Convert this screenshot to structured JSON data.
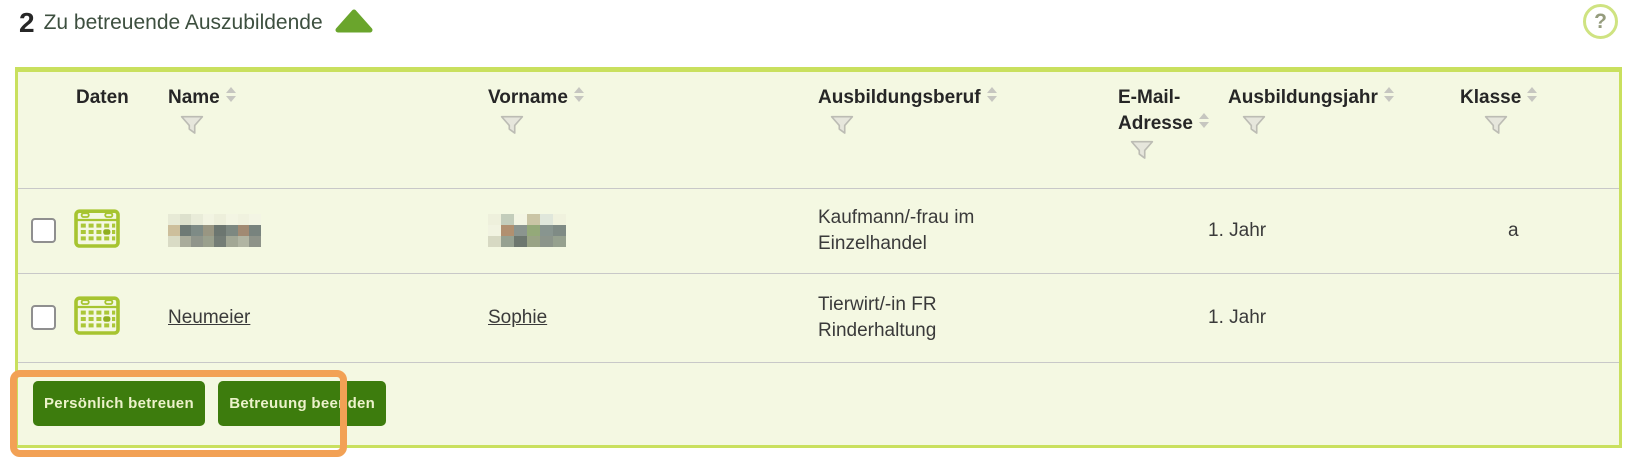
{
  "panel": {
    "count": "2",
    "title": "Zu betreuende Auszubildende",
    "help_glyph": "?"
  },
  "table": {
    "columns": {
      "daten": "Daten",
      "name": "Name",
      "vorname": "Vorname",
      "beruf": "Ausbildungsberuf",
      "email": "E-Mail-Adresse",
      "jahr": "Ausbildungsjahr",
      "klasse": "Klasse"
    },
    "rows": [
      {
        "name_redacted": true,
        "vorname_redacted": true,
        "beruf": "Kaufmann/-frau im Einzelhandel",
        "email": "",
        "jahr": "1. Jahr",
        "klasse": "a"
      },
      {
        "name": "Neumeier",
        "vorname": "Sophie",
        "beruf": "Tierwirt/-in FR Rinderhaltung",
        "email": "",
        "jahr": "1. Jahr",
        "klasse": ""
      }
    ]
  },
  "actions": {
    "personal": "Persönlich betreuen",
    "end": "Betreuung beenden"
  },
  "icons": {
    "collapse": "triangle-up-icon",
    "help": "question-circle-icon",
    "calendar": "calendar-icon",
    "sort": "sort-arrows-icon",
    "filter": "filter-funnel-icon"
  },
  "colors": {
    "accent_green": "#6aa52c",
    "table_border": "#c9e05e",
    "table_bg": "#f4f8e2",
    "separator": "#c8c8c8",
    "button_bg": "#3d7c0d",
    "button_text": "#ecf2ca",
    "highlight_orange": "#f2a155",
    "header_text": "#262626",
    "icon_green": "#a6c430"
  }
}
